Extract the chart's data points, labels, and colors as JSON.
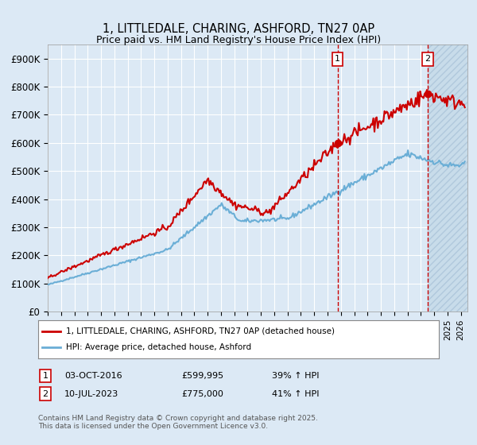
{
  "title": "1, LITTLEDALE, CHARING, ASHFORD, TN27 0AP",
  "subtitle": "Price paid vs. HM Land Registry's House Price Index (HPI)",
  "background_color": "#dce9f5",
  "plot_bg_color": "#dce9f5",
  "hpi_color": "#6aaed6",
  "price_color": "#cc0000",
  "ylim": [
    0,
    950000
  ],
  "yticks": [
    0,
    100000,
    200000,
    300000,
    400000,
    500000,
    600000,
    700000,
    800000,
    900000
  ],
  "ytick_labels": [
    "£0",
    "£100K",
    "£200K",
    "£300K",
    "£400K",
    "£500K",
    "£600K",
    "£700K",
    "£800K",
    "£900K"
  ],
  "xlim_start": 1995.0,
  "xlim_end": 2026.5,
  "sale1_date": 2016.75,
  "sale1_price": 599995,
  "sale2_date": 2023.52,
  "sale2_price": 775000,
  "legend_line1": "1, LITTLEDALE, CHARING, ASHFORD, TN27 0AP (detached house)",
  "legend_line2": "HPI: Average price, detached house, Ashford",
  "footer": "Contains HM Land Registry data © Crown copyright and database right 2025.\nThis data is licensed under the Open Government Licence v3.0."
}
